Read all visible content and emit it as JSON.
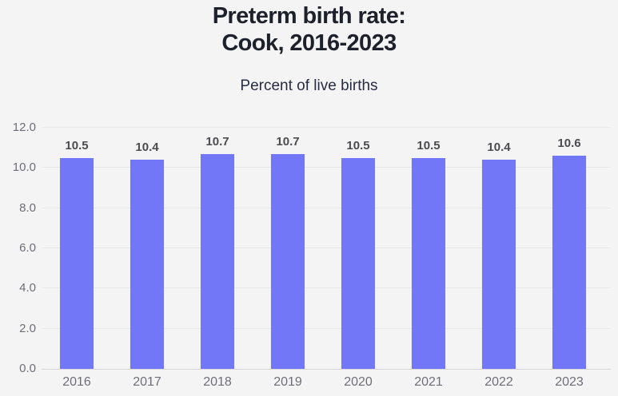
{
  "header": {
    "title_line1": "Preterm birth rate:",
    "title_line2": "Cook, 2016-2023",
    "subtitle": "Percent of live births"
  },
  "chart_data": {
    "type": "bar",
    "title": "Preterm birth rate: Cook, 2016-2023",
    "subtitle": "Percent of live births",
    "categories": [
      "2016",
      "2017",
      "2018",
      "2019",
      "2020",
      "2021",
      "2022",
      "2023"
    ],
    "values": [
      10.5,
      10.4,
      10.7,
      10.7,
      10.5,
      10.5,
      10.4,
      10.6
    ],
    "value_labels": [
      "10.5",
      "10.4",
      "10.7",
      "10.7",
      "10.5",
      "10.5",
      "10.4",
      "10.6"
    ],
    "xlabel": "",
    "ylabel": "",
    "ylim": [
      0,
      12
    ],
    "yticks": [
      0,
      2,
      4,
      6,
      8,
      10,
      12
    ],
    "ytick_labels": [
      "0.0",
      "2.0",
      "4.0",
      "6.0",
      "8.0",
      "10.0",
      "12.0"
    ],
    "grid": true,
    "legend": false
  },
  "colors": {
    "background": "#f4f4f5",
    "bar": "#7277f8",
    "title": "#1d212b",
    "subtitle": "#272c45",
    "value_label": "#4b4b4f",
    "axis_label": "#6e6e78",
    "gridline": "#e7e7ea",
    "baseline": "#d5d5da"
  }
}
